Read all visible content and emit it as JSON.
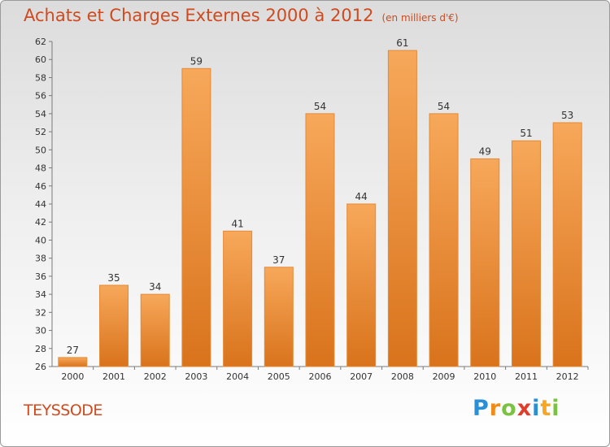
{
  "header": {
    "title": "Achats et Charges Externes 2000 à 2012",
    "unit": "(en milliers d'€)"
  },
  "footer": {
    "commune": "TEYSSODE",
    "brand_letters": [
      {
        "char": "P",
        "color": "#2a8fd4"
      },
      {
        "char": "r",
        "color": "#f08a1a"
      },
      {
        "char": "o",
        "color": "#7cc242"
      },
      {
        "char": "x",
        "color": "#e23d2a"
      },
      {
        "char": "i",
        "color": "#2a8fd4"
      },
      {
        "char": "t",
        "color": "#f5a623"
      },
      {
        "char": "i",
        "color": "#7cc242"
      }
    ]
  },
  "chart_data": {
    "type": "bar",
    "title": "Achats et Charges Externes 2000 à 2012",
    "subtitle": "(en milliers d'€)",
    "categories": [
      "2000",
      "2001",
      "2002",
      "2003",
      "2004",
      "2005",
      "2006",
      "2007",
      "2008",
      "2009",
      "2010",
      "2011",
      "2012"
    ],
    "values": [
      27,
      35,
      34,
      59,
      41,
      37,
      54,
      44,
      61,
      54,
      49,
      51,
      53
    ],
    "ylim": [
      26,
      62
    ],
    "yticks": [
      26,
      28,
      30,
      32,
      34,
      36,
      38,
      40,
      42,
      44,
      46,
      48,
      50,
      52,
      54,
      56,
      58,
      60,
      62
    ],
    "grid": false,
    "legend": "none",
    "colors": {
      "bar_top": "#f7a85a",
      "bar_bottom": "#d9731c",
      "bar_stroke": "#e48a36",
      "axis": "#7a7a7a",
      "label": "#333333"
    }
  }
}
